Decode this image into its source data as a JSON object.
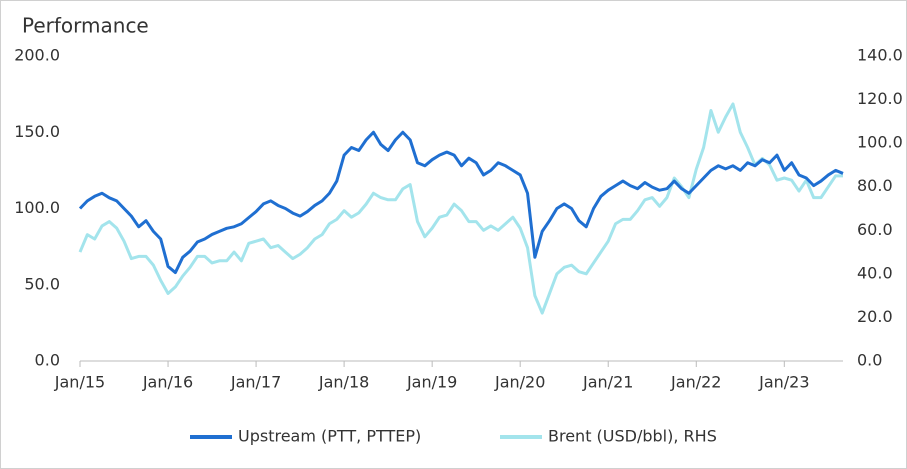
{
  "chart_data": {
    "type": "line",
    "title": "Performance",
    "categories": [
      "Jan/15",
      null,
      null,
      null,
      null,
      null,
      null,
      null,
      null,
      null,
      null,
      null,
      "Jan/16",
      null,
      null,
      null,
      null,
      null,
      null,
      null,
      null,
      null,
      null,
      null,
      "Jan/17",
      null,
      null,
      null,
      null,
      null,
      null,
      null,
      null,
      null,
      null,
      null,
      "Jan/18",
      null,
      null,
      null,
      null,
      null,
      null,
      null,
      null,
      null,
      null,
      null,
      "Jan/19",
      null,
      null,
      null,
      null,
      null,
      null,
      null,
      null,
      null,
      null,
      null,
      "Jan/20",
      null,
      null,
      null,
      null,
      null,
      null,
      null,
      null,
      null,
      null,
      null,
      "Jan/21",
      null,
      null,
      null,
      null,
      null,
      null,
      null,
      null,
      null,
      null,
      null,
      "Jan/22",
      null,
      null,
      null,
      null,
      null,
      null,
      null,
      null,
      null,
      null,
      null,
      "Jan/23",
      null,
      null,
      null,
      null,
      null,
      null,
      null,
      null
    ],
    "series": [
      {
        "name": "Upstream (PTT, PTTEP)",
        "color": "#1f6fd1",
        "axis": "y",
        "values": [
          100,
          105,
          108,
          110,
          107,
          105,
          100,
          95,
          88,
          92,
          85,
          80,
          62,
          58,
          68,
          72,
          78,
          80,
          83,
          85,
          87,
          88,
          90,
          94,
          98,
          103,
          105,
          102,
          100,
          97,
          95,
          98,
          102,
          105,
          110,
          118,
          135,
          140,
          138,
          145,
          150,
          142,
          138,
          145,
          150,
          145,
          130,
          128,
          132,
          135,
          137,
          135,
          128,
          133,
          130,
          122,
          125,
          130,
          128,
          125,
          122,
          110,
          68,
          85,
          92,
          100,
          103,
          100,
          92,
          88,
          100,
          108,
          112,
          115,
          118,
          115,
          113,
          117,
          114,
          112,
          113,
          118,
          113,
          110,
          115,
          120,
          125,
          128,
          126,
          128,
          125,
          130,
          128,
          132,
          130,
          135,
          125,
          130,
          122,
          120,
          115,
          118,
          122,
          125,
          123
        ]
      },
      {
        "name": "Brent (USD/bbl), RHS",
        "color": "#a3e4ec",
        "axis": "y2",
        "values": [
          50,
          58,
          56,
          62,
          64,
          61,
          55,
          47,
          48,
          48,
          44,
          37,
          31,
          34,
          39,
          43,
          48,
          48,
          45,
          46,
          46,
          50,
          46,
          54,
          55,
          56,
          52,
          53,
          50,
          47,
          49,
          52,
          56,
          58,
          63,
          65,
          69,
          66,
          68,
          72,
          77,
          75,
          74,
          74,
          79,
          81,
          64,
          57,
          61,
          66,
          67,
          72,
          69,
          64,
          64,
          60,
          62,
          60,
          63,
          66,
          61,
          52,
          30,
          22,
          31,
          40,
          43,
          44,
          41,
          40,
          45,
          50,
          55,
          63,
          65,
          65,
          69,
          74,
          75,
          71,
          75,
          84,
          80,
          75,
          88,
          98,
          115,
          105,
          112,
          118,
          105,
          98,
          90,
          93,
          90,
          83,
          84,
          83,
          78,
          83,
          75,
          75,
          80,
          85,
          85
        ]
      }
    ],
    "ylim": [
      0,
      200
    ],
    "yticks": [
      {
        "value": 0,
        "label": "0.0"
      },
      {
        "value": 50,
        "label": "50.0"
      },
      {
        "value": 100,
        "label": "100.0"
      },
      {
        "value": 150,
        "label": "150.0"
      },
      {
        "value": 200,
        "label": "200.0"
      }
    ],
    "y2lim": [
      0,
      140
    ],
    "y2ticks": [
      {
        "value": 0,
        "label": "0.0"
      },
      {
        "value": 20,
        "label": "20.0"
      },
      {
        "value": 40,
        "label": "40.0"
      },
      {
        "value": 60,
        "label": "60.0"
      },
      {
        "value": 80,
        "label": "80.0"
      },
      {
        "value": 100,
        "label": "100.0"
      },
      {
        "value": 120,
        "label": "120.0"
      },
      {
        "value": 140,
        "label": "140.0"
      }
    ],
    "grid": false,
    "legend": "bottom"
  }
}
